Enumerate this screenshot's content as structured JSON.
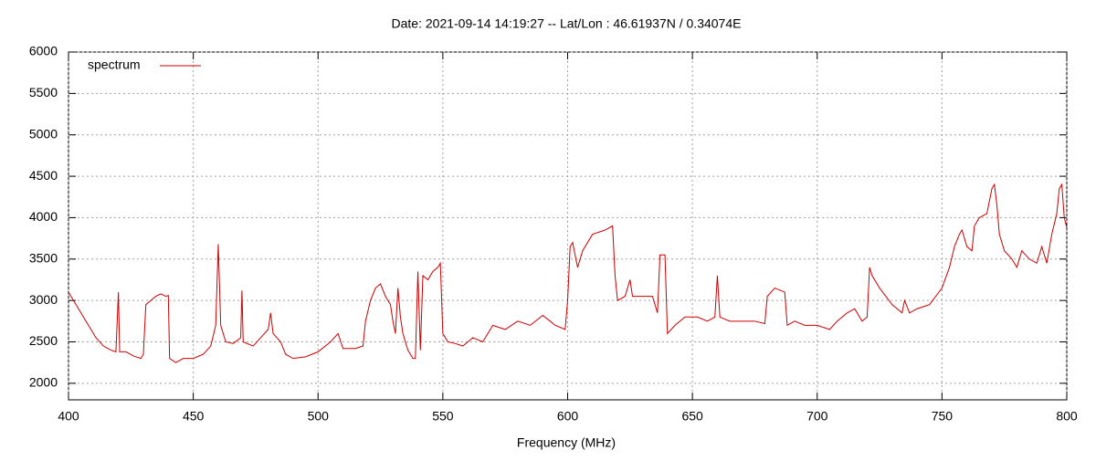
{
  "chart_data": {
    "type": "line",
    "title": "Date: 2021-09-14 14:19:27  --  Lat/Lon : 46.61937N / 0.34074E",
    "x_label": "Frequency (MHz)",
    "x": [
      400,
      402,
      405,
      408,
      411,
      414,
      417,
      419,
      420,
      420.5,
      423,
      426,
      429,
      430,
      431,
      433,
      435,
      437,
      439,
      440,
      440.5,
      443,
      446,
      450,
      454,
      457,
      459,
      460,
      461,
      463,
      466,
      469,
      469.5,
      470,
      474,
      477,
      480,
      481,
      482,
      485,
      487,
      490,
      495,
      500,
      505,
      508,
      510,
      515,
      518,
      519,
      521,
      523,
      525,
      527,
      529,
      530,
      531,
      532,
      533,
      534,
      536,
      538,
      539,
      540,
      541,
      542,
      544,
      546,
      548,
      549,
      550,
      552,
      555,
      558,
      562,
      566,
      570,
      575,
      580,
      585,
      590,
      593,
      595,
      599,
      600,
      601,
      602,
      604,
      606,
      610,
      615,
      618,
      619,
      620,
      623,
      625,
      626,
      630,
      634,
      636,
      637,
      639,
      640,
      643,
      647,
      652,
      656,
      659,
      660,
      661,
      665,
      670,
      675,
      679,
      680,
      683,
      687,
      688,
      691,
      695,
      700,
      705,
      708,
      712,
      715,
      718,
      720,
      721,
      722,
      725,
      730,
      734,
      735,
      737,
      740,
      745,
      750,
      753,
      755,
      757,
      758,
      760,
      762,
      763,
      765,
      768,
      770,
      771,
      772,
      773,
      775,
      778,
      780,
      782,
      785,
      788,
      790,
      792,
      794,
      796,
      797,
      798,
      799,
      800
    ],
    "series": [
      {
        "name": "spectrum",
        "color": "#cc0000",
        "values": [
          3100,
          3000,
          2850,
          2700,
          2550,
          2450,
          2400,
          2380,
          3100,
          2380,
          2380,
          2330,
          2300,
          2350,
          2950,
          3000,
          3050,
          3080,
          3050,
          3060,
          2300,
          2250,
          2300,
          2300,
          2350,
          2450,
          2700,
          3680,
          2700,
          2500,
          2480,
          2550,
          3120,
          2500,
          2450,
          2550,
          2650,
          2850,
          2600,
          2500,
          2350,
          2300,
          2320,
          2380,
          2500,
          2600,
          2420,
          2420,
          2450,
          2750,
          3000,
          3150,
          3200,
          3050,
          2950,
          2750,
          2600,
          3150,
          2800,
          2600,
          2400,
          2300,
          2300,
          3350,
          2400,
          3300,
          3250,
          3350,
          3400,
          3450,
          2600,
          2500,
          2480,
          2450,
          2550,
          2500,
          2700,
          2650,
          2750,
          2700,
          2820,
          2750,
          2700,
          2650,
          3000,
          3650,
          3700,
          3400,
          3600,
          3800,
          3850,
          3900,
          3300,
          3000,
          3050,
          3250,
          3050,
          3050,
          3050,
          2850,
          3550,
          3550,
          2600,
          2700,
          2800,
          2800,
          2750,
          2800,
          3300,
          2800,
          2750,
          2750,
          2750,
          2720,
          3050,
          3150,
          3100,
          2700,
          2750,
          2700,
          2700,
          2650,
          2750,
          2850,
          2900,
          2750,
          2800,
          3400,
          3300,
          3150,
          2950,
          2850,
          3000,
          2850,
          2900,
          2950,
          3150,
          3400,
          3650,
          3800,
          3850,
          3650,
          3600,
          3900,
          4000,
          4050,
          4350,
          4400,
          4150,
          3800,
          3600,
          3500,
          3400,
          3600,
          3500,
          3450,
          3650,
          3450,
          3800,
          4050,
          4350,
          4400,
          4000,
          3880
        ]
      }
    ],
    "xlim": [
      400,
      800
    ],
    "xticks": [
      400,
      450,
      500,
      550,
      600,
      650,
      700,
      750,
      800
    ],
    "ylim": [
      1800,
      6000
    ],
    "yticks": [
      2000,
      2500,
      3000,
      3500,
      4000,
      4500,
      5000,
      5500,
      6000
    ],
    "grid": true,
    "legend": "top-left"
  }
}
